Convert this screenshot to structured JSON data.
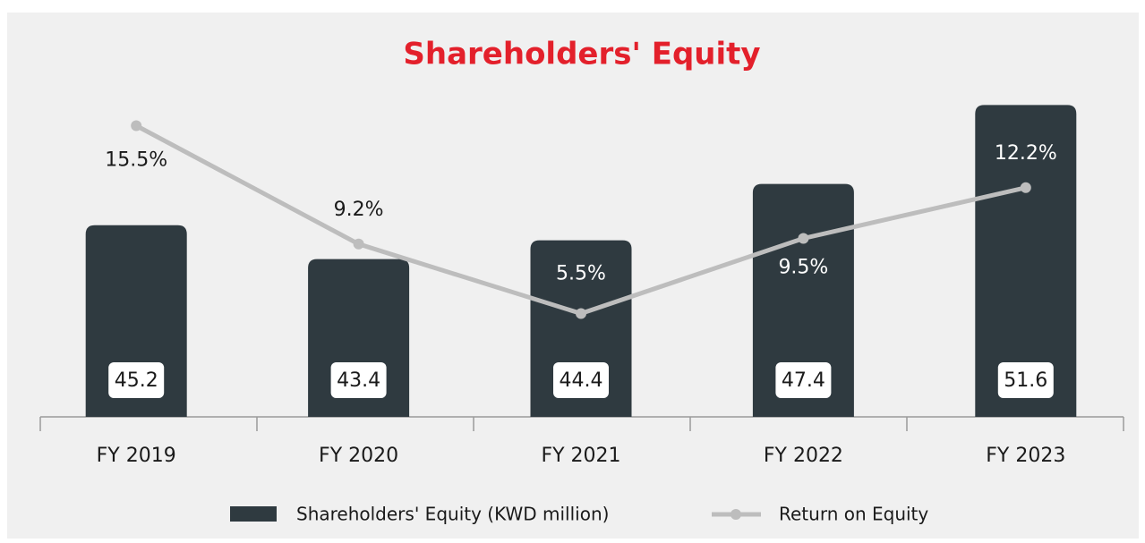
{
  "chart_data": {
    "type": "bar",
    "title": "Shareholders' Equity",
    "categories": [
      "FY 2019",
      "FY 2020",
      "FY 2021",
      "FY 2022",
      "FY 2023"
    ],
    "series": [
      {
        "name": "Shareholders' Equity (KWD million)",
        "type": "bar",
        "color": "#2f3a40",
        "values": [
          45.2,
          43.4,
          44.4,
          47.4,
          51.6
        ]
      },
      {
        "name": "Return on Equity",
        "type": "line",
        "axis": "y2",
        "color": "#bdbdbd",
        "values": [
          15.5,
          9.2,
          5.5,
          9.5,
          12.2
        ],
        "value_labels": [
          "15.5%",
          "9.2%",
          "5.5%",
          "9.5%",
          "12.2%"
        ]
      }
    ],
    "ylim": [
      35,
      53
    ],
    "y2lim": [
      0,
      18
    ],
    "title_color": "#e3202b"
  }
}
